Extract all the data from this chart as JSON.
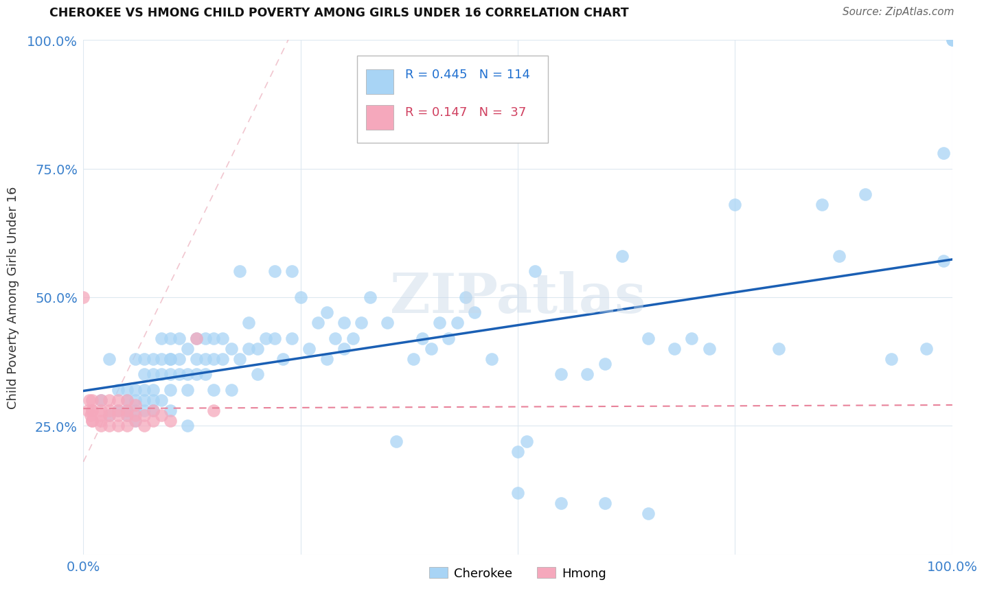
{
  "title": "CHEROKEE VS HMONG CHILD POVERTY AMONG GIRLS UNDER 16 CORRELATION CHART",
  "source": "Source: ZipAtlas.com",
  "ylabel": "Child Poverty Among Girls Under 16",
  "watermark": "ZIPatlas",
  "xlim": [
    0,
    1
  ],
  "ylim": [
    0,
    1
  ],
  "xticks": [
    0,
    0.25,
    0.5,
    0.75,
    1.0
  ],
  "yticks": [
    0,
    0.25,
    0.5,
    0.75,
    1.0
  ],
  "xtick_labels": [
    "0.0%",
    "",
    "",
    "",
    "100.0%"
  ],
  "ytick_labels": [
    "",
    "25.0%",
    "50.0%",
    "75.0%",
    "100.0%"
  ],
  "cherokee_R": 0.445,
  "cherokee_N": 114,
  "hmong_R": 0.147,
  "hmong_N": 37,
  "cherokee_color": "#a8d4f5",
  "hmong_color": "#f5a8bc",
  "cherokee_line_color": "#1a5fb4",
  "hmong_line_color": "#e8829a",
  "ref_line_color": "#e8a0b0",
  "grid_color": "#dde8f0",
  "background_color": "#ffffff",
  "cherokee_x": [
    0.02,
    0.03,
    0.03,
    0.04,
    0.04,
    0.05,
    0.05,
    0.05,
    0.05,
    0.06,
    0.06,
    0.06,
    0.06,
    0.06,
    0.07,
    0.07,
    0.07,
    0.07,
    0.07,
    0.08,
    0.08,
    0.08,
    0.08,
    0.08,
    0.09,
    0.09,
    0.09,
    0.09,
    0.1,
    0.1,
    0.1,
    0.1,
    0.1,
    0.1,
    0.11,
    0.11,
    0.11,
    0.12,
    0.12,
    0.12,
    0.12,
    0.13,
    0.13,
    0.13,
    0.14,
    0.14,
    0.14,
    0.15,
    0.15,
    0.15,
    0.16,
    0.16,
    0.17,
    0.17,
    0.18,
    0.18,
    0.19,
    0.19,
    0.2,
    0.2,
    0.21,
    0.22,
    0.22,
    0.23,
    0.24,
    0.24,
    0.25,
    0.26,
    0.27,
    0.28,
    0.28,
    0.29,
    0.3,
    0.3,
    0.31,
    0.32,
    0.33,
    0.35,
    0.36,
    0.38,
    0.39,
    0.4,
    0.41,
    0.42,
    0.43,
    0.44,
    0.45,
    0.47,
    0.5,
    0.51,
    0.52,
    0.55,
    0.58,
    0.6,
    0.62,
    0.65,
    0.68,
    0.7,
    0.72,
    0.75,
    0.8,
    0.85,
    0.87,
    0.9,
    0.93,
    0.97,
    0.99,
    0.99,
    1.0,
    1.0,
    0.5,
    0.55,
    0.6,
    0.65
  ],
  "cherokee_y": [
    0.3,
    0.27,
    0.38,
    0.28,
    0.32,
    0.27,
    0.32,
    0.3,
    0.28,
    0.26,
    0.28,
    0.32,
    0.3,
    0.38,
    0.28,
    0.32,
    0.3,
    0.35,
    0.38,
    0.32,
    0.35,
    0.38,
    0.28,
    0.3,
    0.3,
    0.35,
    0.38,
    0.42,
    0.28,
    0.32,
    0.35,
    0.38,
    0.42,
    0.38,
    0.35,
    0.38,
    0.42,
    0.32,
    0.35,
    0.4,
    0.25,
    0.35,
    0.38,
    0.42,
    0.35,
    0.38,
    0.42,
    0.38,
    0.42,
    0.32,
    0.38,
    0.42,
    0.4,
    0.32,
    0.55,
    0.38,
    0.4,
    0.45,
    0.35,
    0.4,
    0.42,
    0.42,
    0.55,
    0.38,
    0.42,
    0.55,
    0.5,
    0.4,
    0.45,
    0.38,
    0.47,
    0.42,
    0.4,
    0.45,
    0.42,
    0.45,
    0.5,
    0.45,
    0.22,
    0.38,
    0.42,
    0.4,
    0.45,
    0.42,
    0.45,
    0.5,
    0.47,
    0.38,
    0.2,
    0.22,
    0.55,
    0.35,
    0.35,
    0.37,
    0.58,
    0.42,
    0.4,
    0.42,
    0.4,
    0.68,
    0.4,
    0.68,
    0.58,
    0.7,
    0.38,
    0.4,
    0.78,
    0.57,
    1.0,
    1.0,
    0.12,
    0.1,
    0.1,
    0.08
  ],
  "hmong_x": [
    0.0,
    0.005,
    0.007,
    0.008,
    0.01,
    0.01,
    0.01,
    0.01,
    0.01,
    0.02,
    0.02,
    0.02,
    0.02,
    0.02,
    0.03,
    0.03,
    0.03,
    0.03,
    0.04,
    0.04,
    0.04,
    0.04,
    0.05,
    0.05,
    0.05,
    0.05,
    0.06,
    0.06,
    0.06,
    0.07,
    0.07,
    0.08,
    0.08,
    0.09,
    0.1,
    0.13,
    0.15
  ],
  "hmong_y": [
    0.5,
    0.28,
    0.3,
    0.27,
    0.26,
    0.28,
    0.3,
    0.28,
    0.26,
    0.26,
    0.28,
    0.3,
    0.27,
    0.25,
    0.28,
    0.3,
    0.27,
    0.25,
    0.28,
    0.3,
    0.27,
    0.25,
    0.28,
    0.3,
    0.27,
    0.25,
    0.27,
    0.29,
    0.26,
    0.27,
    0.25,
    0.26,
    0.28,
    0.27,
    0.26,
    0.42,
    0.28
  ]
}
